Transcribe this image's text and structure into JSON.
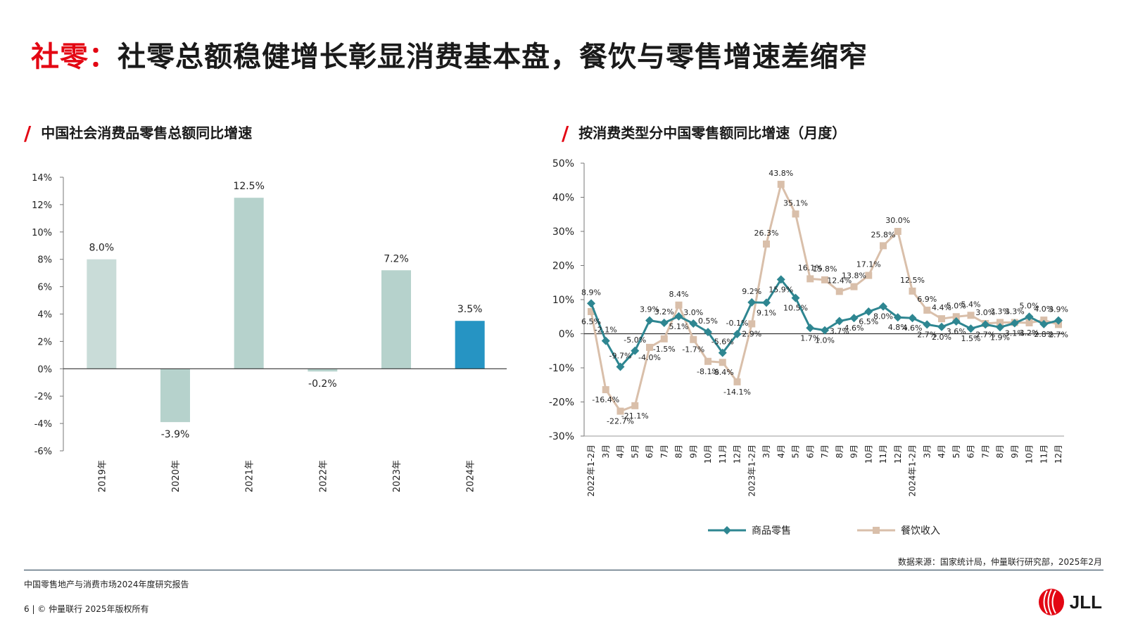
{
  "page": {
    "title_red": "社零：",
    "title_black": "社零总额稳健增长彰显消费基本盘，餐饮与零售增速差缩窄",
    "footer_report": "中国零售地产与消费市场2024年度研究报告",
    "footer_copy": "6 | © 仲量联行 2025年版权所有",
    "source": "数据来源：国家统计局，仲量联行研究部，2025年2月",
    "logo_text": "JLL"
  },
  "colors": {
    "accent": "#e30613",
    "bar_light": "#c9dcd8",
    "bar_mid": "#b6d2cc",
    "bar_highlight": "#2694c3",
    "retail_line": "#2e8691",
    "catering_line": "#d9bfaa",
    "text": "#1a1a1a"
  },
  "chart_data": [
    {
      "type": "bar",
      "title": "中国社会消费品零售总额同比增速",
      "categories": [
        "2019年",
        "2020年",
        "2021年",
        "2022年",
        "2023年",
        "2024年"
      ],
      "values": [
        8.0,
        -3.9,
        12.5,
        -0.2,
        7.2,
        3.5
      ],
      "value_labels": [
        "8.0%",
        "-3.9%",
        "12.5%",
        "-0.2%",
        "7.2%",
        "3.5%"
      ],
      "ylim": [
        -6,
        14
      ],
      "yticks": [
        "-6%",
        "-4%",
        "-2%",
        "0%",
        "2%",
        "4%",
        "6%",
        "8%",
        "10%",
        "12%",
        "14%"
      ],
      "highlight_index": 5,
      "grid": false
    },
    {
      "type": "line",
      "title": "按消费类型分中国零售额同比增速（月度）",
      "ylim": [
        -30,
        50
      ],
      "yticks": [
        "-30%",
        "-20%",
        "-10%",
        "0%",
        "10%",
        "20%",
        "30%",
        "40%",
        "50%"
      ],
      "categories": [
        "2022年1-2月",
        "3月",
        "4月",
        "5月",
        "6月",
        "7月",
        "8月",
        "9月",
        "10月",
        "11月",
        "12月",
        "2023年1-2月",
        "3月",
        "4月",
        "5月",
        "6月",
        "7月",
        "8月",
        "9月",
        "10月",
        "11月",
        "12月",
        "2024年1-2月",
        "3月",
        "4月",
        "5月",
        "6月",
        "7月",
        "8月",
        "9月",
        "10月",
        "11月",
        "12月"
      ],
      "legend_position": "bottom",
      "series": [
        {
          "name": "商品零售",
          "values": [
            8.9,
            -2.1,
            -9.7,
            -5.0,
            3.9,
            3.2,
            5.1,
            3.0,
            0.5,
            -5.6,
            -0.1,
            9.2,
            9.1,
            15.9,
            10.5,
            1.7,
            1.0,
            3.7,
            4.6,
            6.5,
            8.0,
            4.8,
            4.6,
            2.7,
            2.0,
            3.6,
            1.5,
            2.7,
            1.9,
            3.1,
            5.0,
            2.8,
            3.9
          ],
          "labels": [
            "8.9%",
            "-2.1%",
            "-9.7%",
            "-5.0%",
            "3.9%",
            "3.2%",
            "5.1%",
            "3.0%",
            "0.5%",
            "-5.6%",
            "-0.1%",
            "9.2%",
            "9.1%",
            "15.9%",
            "10.5%",
            "1.7%",
            "1.0%",
            "3.7%",
            "4.6%",
            "6.5%",
            "8.0%",
            "4.8%",
            "4.6%",
            "2.7%",
            "2.0%",
            "3.6%",
            "1.5%",
            "2.7%",
            "1.9%",
            "3.1%",
            "5.0%",
            "2.8%",
            "3.9%"
          ]
        },
        {
          "name": "餐饮收入",
          "values": [
            6.5,
            -16.4,
            -22.7,
            -21.1,
            -4.0,
            -1.5,
            8.4,
            -1.7,
            -8.1,
            -8.4,
            -14.1,
            2.9,
            26.3,
            43.8,
            35.1,
            16.1,
            15.8,
            12.4,
            13.8,
            17.1,
            25.8,
            30.0,
            12.5,
            6.9,
            4.4,
            5.0,
            5.4,
            3.0,
            3.3,
            3.3,
            3.2,
            4.0,
            2.7
          ],
          "labels": [
            "6.5%",
            "-16.4%",
            "-22.7%",
            "-21.1%",
            "-4.0%",
            "-1.5%",
            "8.4%",
            "-1.7%",
            "-8.1%",
            "-8.4%",
            "-14.1%",
            "2.9%",
            "26.3%",
            "43.8%",
            "35.1%",
            "16.1%",
            "15.8%",
            "12.4%",
            "13.8%",
            "17.1%",
            "25.8%",
            "30.0%",
            "12.5%",
            "6.9%",
            "4.4%",
            "5.0%",
            "5.4%",
            "3.0%",
            "3.3%",
            "3.3%",
            "3.2%",
            "4.0%",
            "2.7%"
          ]
        }
      ]
    }
  ]
}
